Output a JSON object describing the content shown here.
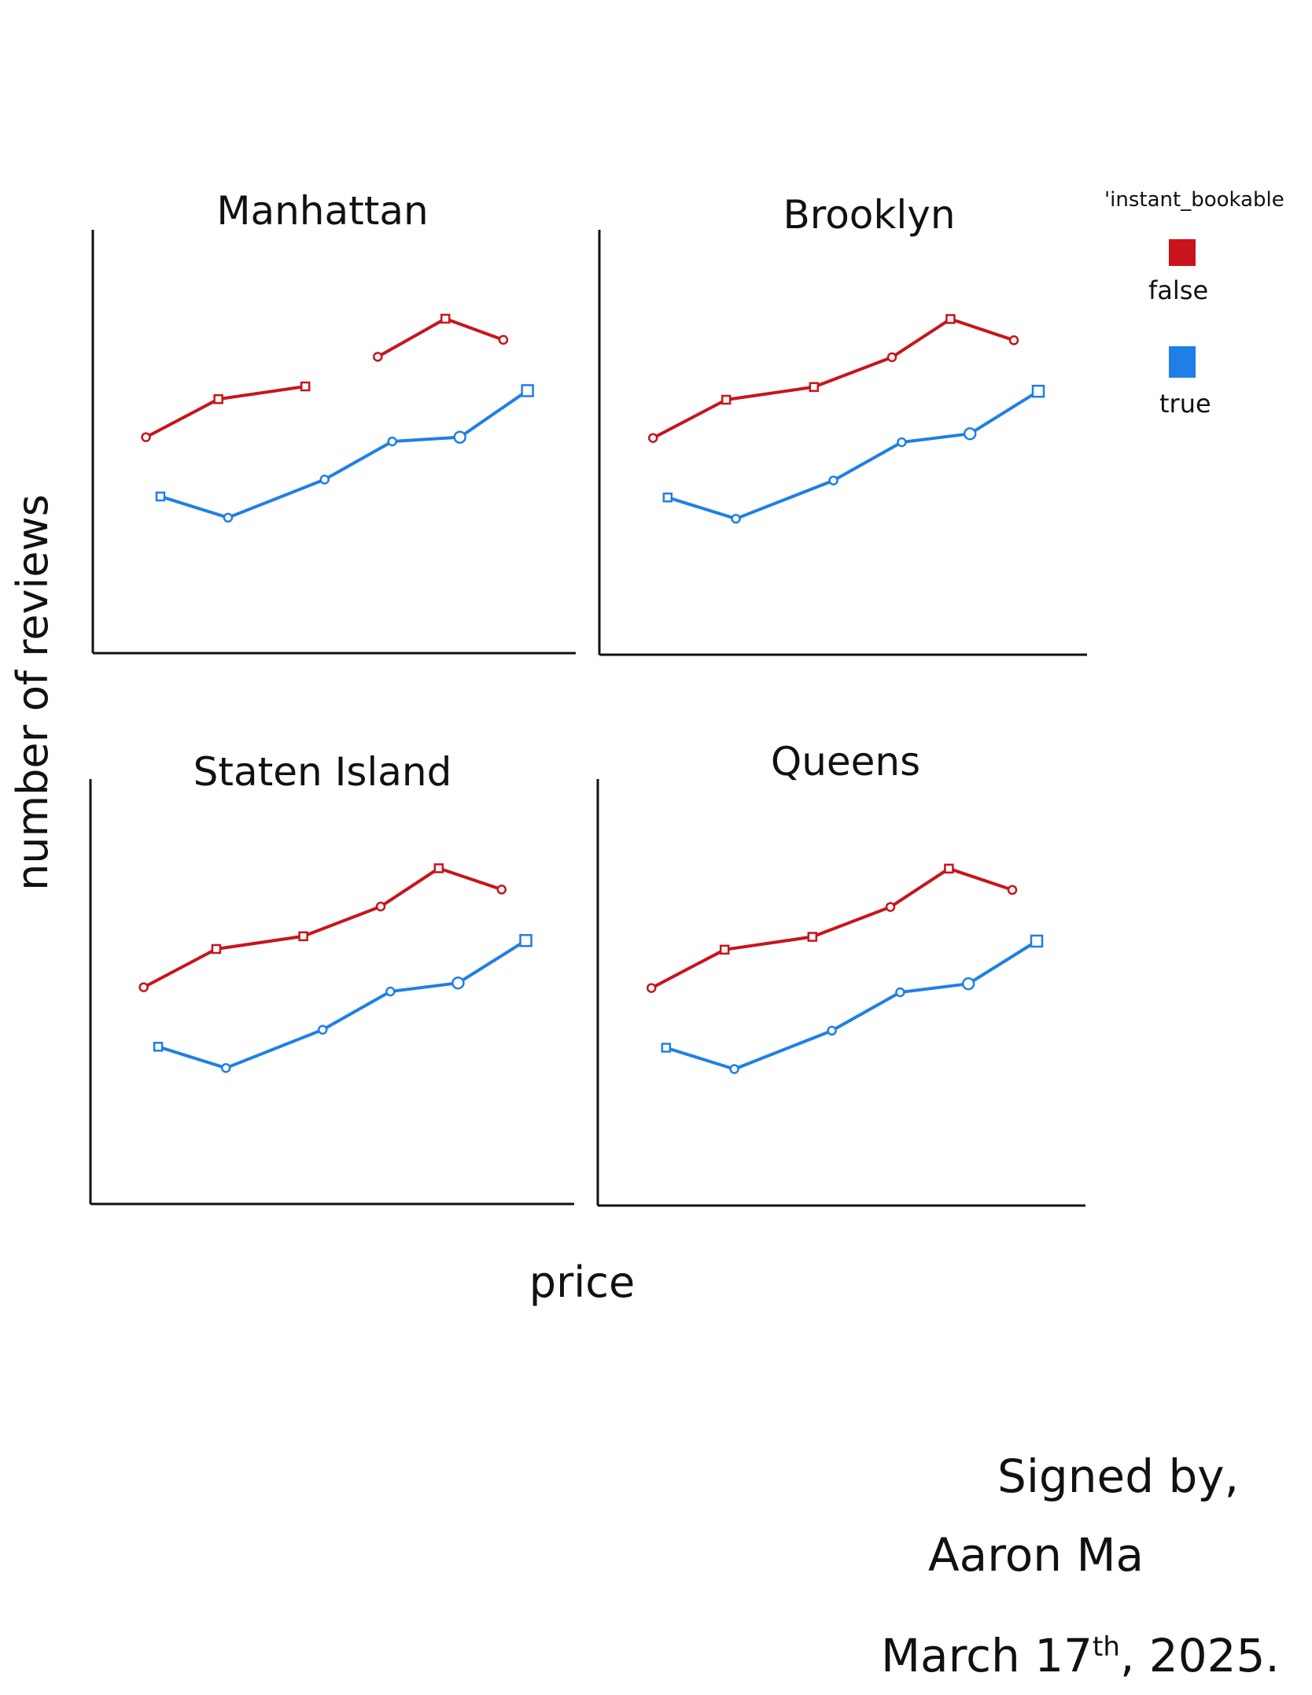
{
  "chart_data": {
    "type": "line",
    "xlabel": "price",
    "ylabel": "number of reviews",
    "grid": false,
    "legend": {
      "title": "'instant_bookable",
      "placement": "top-right",
      "entries": [
        {
          "label": "false",
          "color": "#c8141c"
        },
        {
          "label": "true",
          "color": "#1f7fe6"
        }
      ]
    },
    "xlim": [
      0,
      10
    ],
    "ylim": [
      0,
      10
    ],
    "panels": [
      {
        "title": "Manhattan",
        "series": [
          {
            "color": "#c8141c",
            "markers": [
              "circle",
              "square",
              "square",
              "circle",
              "square",
              "circle"
            ],
            "x": [
              1.1,
              2.6,
              4.4,
              5.9,
              7.3,
              8.5
            ],
            "y": [
              5.1,
              6.0,
              6.3,
              7.0,
              7.9,
              7.4
            ],
            "break_after": 2
          },
          {
            "color": "#1f7fe6",
            "markers": [
              "square",
              "circle",
              "circle",
              "circle",
              "circle",
              "square"
            ],
            "x": [
              1.4,
              2.8,
              4.8,
              6.2,
              7.6,
              9.0
            ],
            "y": [
              3.7,
              3.2,
              4.1,
              5.0,
              5.1,
              6.2
            ]
          }
        ]
      },
      {
        "title": "Brooklyn",
        "series": [
          {
            "color": "#c8141c",
            "markers": [
              "circle",
              "square",
              "square",
              "circle",
              "square",
              "circle"
            ],
            "x": [
              1.1,
              2.6,
              4.4,
              6.0,
              7.2,
              8.5
            ],
            "y": [
              5.1,
              6.0,
              6.3,
              7.0,
              7.9,
              7.4
            ]
          },
          {
            "color": "#1f7fe6",
            "markers": [
              "square",
              "circle",
              "circle",
              "circle",
              "circle",
              "square"
            ],
            "x": [
              1.4,
              2.8,
              4.8,
              6.2,
              7.6,
              9.0
            ],
            "y": [
              3.7,
              3.2,
              4.1,
              5.0,
              5.2,
              6.2
            ]
          }
        ]
      },
      {
        "title": "Staten Island",
        "series": [
          {
            "color": "#c8141c",
            "markers": [
              "circle",
              "square",
              "square",
              "circle",
              "square",
              "circle"
            ],
            "x": [
              1.1,
              2.6,
              4.4,
              6.0,
              7.2,
              8.5
            ],
            "y": [
              5.1,
              6.0,
              6.3,
              7.0,
              7.9,
              7.4
            ]
          },
          {
            "color": "#1f7fe6",
            "markers": [
              "square",
              "circle",
              "circle",
              "circle",
              "circle",
              "square"
            ],
            "x": [
              1.4,
              2.8,
              4.8,
              6.2,
              7.6,
              9.0
            ],
            "y": [
              3.7,
              3.2,
              4.1,
              5.0,
              5.2,
              6.2
            ]
          }
        ]
      },
      {
        "title": "Queens",
        "series": [
          {
            "color": "#c8141c",
            "markers": [
              "circle",
              "square",
              "square",
              "circle",
              "square",
              "circle"
            ],
            "x": [
              1.1,
              2.6,
              4.4,
              6.0,
              7.2,
              8.5
            ],
            "y": [
              5.1,
              6.0,
              6.3,
              7.0,
              7.9,
              7.4
            ]
          },
          {
            "color": "#1f7fe6",
            "markers": [
              "square",
              "circle",
              "circle",
              "circle",
              "circle",
              "square"
            ],
            "x": [
              1.4,
              2.8,
              4.8,
              6.2,
              7.6,
              9.0
            ],
            "y": [
              3.7,
              3.2,
              4.1,
              5.0,
              5.2,
              6.2
            ]
          }
        ]
      }
    ]
  },
  "signature": {
    "line1": "Signed by,",
    "line2": "Aaron Ma",
    "line3_prefix": "March 17",
    "line3_sup": "th",
    "line3_suffix": ", 2025."
  }
}
